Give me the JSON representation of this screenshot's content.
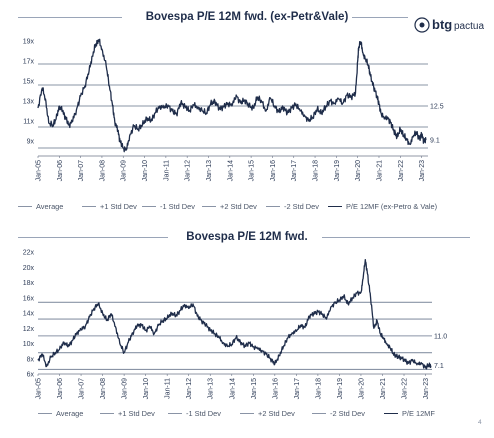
{
  "logo": {
    "brand": "btg",
    "sub": "pactual"
  },
  "page_number": "4",
  "chart_data": [
    {
      "type": "line",
      "title": "Bovespa P/E 12M fwd. (ex-Petr&Vale)",
      "xlabel": "",
      "ylabel": "",
      "ylim": [
        7.5,
        19.5
      ],
      "yticks": [
        9,
        11,
        13,
        15,
        17,
        19
      ],
      "ytick_labels": [
        "9x",
        "11x",
        "13x",
        "15x",
        "17x",
        "19x"
      ],
      "xlim": [
        2005.0,
        2023.3
      ],
      "xtick_labels": [
        "Jan-05",
        "Jan-06",
        "Jan-07",
        "Jan-08",
        "Jan-09",
        "Jan-10",
        "Jan-11",
        "Jan-12",
        "Jan-13",
        "Jan-14",
        "Jan-15",
        "Jan-16",
        "Jan-17",
        "Jan-18",
        "Jan-19",
        "Jan-20",
        "Jan-21",
        "Jan-22",
        "Jan-23"
      ],
      "grid": false,
      "legend_position": "bottom",
      "reference_lines": [
        {
          "name": "Average",
          "value": 12.5,
          "color": "#8a94a6"
        },
        {
          "name": "+1 Std Dev",
          "value": 14.6,
          "color": "#8a94a6"
        },
        {
          "name": "-1 Std Dev",
          "value": 10.4,
          "color": "#8a94a6"
        },
        {
          "name": "+2 Std Dev",
          "value": 16.7,
          "color": "#8a94a6"
        },
        {
          "name": "-2 Std Dev",
          "value": 8.3,
          "color": "#8a94a6"
        }
      ],
      "annotations": [
        {
          "text": "12.5",
          "x": 2023.3,
          "y": 12.5
        },
        {
          "text": "9.1",
          "x": 2023.3,
          "y": 9.1
        }
      ],
      "series": [
        {
          "name": "P/E 12MF (ex-Petro & Vale)",
          "color": "#1f2d4a",
          "x": [
            2005.0,
            2005.2,
            2005.35,
            2005.5,
            2005.7,
            2005.85,
            2006.0,
            2006.15,
            2006.3,
            2006.45,
            2006.6,
            2006.8,
            2007.0,
            2007.2,
            2007.4,
            2007.55,
            2007.7,
            2007.85,
            2008.0,
            2008.2,
            2008.35,
            2008.5,
            2008.6,
            2008.75,
            2008.85,
            2009.0,
            2009.15,
            2009.3,
            2009.5,
            2009.7,
            2009.9,
            2010.1,
            2010.3,
            2010.5,
            2010.7,
            2010.9,
            2011.1,
            2011.3,
            2011.5,
            2011.7,
            2011.9,
            2012.1,
            2012.3,
            2012.5,
            2012.7,
            2012.9,
            2013.1,
            2013.3,
            2013.5,
            2013.7,
            2013.9,
            2014.1,
            2014.3,
            2014.5,
            2014.7,
            2014.9,
            2015.1,
            2015.3,
            2015.5,
            2015.7,
            2015.9,
            2016.1,
            2016.3,
            2016.5,
            2016.7,
            2016.9,
            2017.1,
            2017.3,
            2017.5,
            2017.7,
            2017.9,
            2018.1,
            2018.3,
            2018.5,
            2018.7,
            2018.9,
            2019.1,
            2019.3,
            2019.5,
            2019.7,
            2019.9,
            2020.0,
            2020.05,
            2020.15,
            2020.25,
            2020.35,
            2020.5,
            2020.6,
            2020.75,
            2020.9,
            2021.0,
            2021.1,
            2021.25,
            2021.4,
            2021.55,
            2021.7,
            2021.85,
            2022.0,
            2022.15,
            2022.3,
            2022.45,
            2022.6,
            2022.75,
            2022.9,
            2023.0,
            2023.1,
            2023.2
          ],
          "y": [
            12.3,
            14.3,
            13.2,
            10.8,
            10.6,
            11.2,
            12.5,
            12.0,
            11.3,
            10.6,
            10.9,
            12.1,
            13.5,
            14.5,
            16.0,
            17.5,
            18.6,
            19.1,
            18.2,
            16.5,
            14.5,
            12.5,
            11.0,
            10.0,
            9.0,
            8.3,
            8.1,
            9.5,
            10.5,
            10.2,
            10.6,
            11.3,
            11.0,
            11.8,
            12.5,
            12.3,
            12.6,
            12.0,
            11.7,
            12.8,
            12.5,
            12.0,
            12.6,
            12.4,
            12.0,
            11.8,
            12.7,
            13.0,
            12.2,
            12.4,
            12.8,
            12.5,
            13.6,
            12.8,
            13.1,
            12.5,
            12.3,
            13.4,
            12.9,
            12.0,
            13.3,
            12.5,
            11.9,
            12.4,
            11.8,
            12.3,
            12.7,
            12.0,
            11.6,
            11.0,
            11.4,
            12.2,
            11.8,
            12.4,
            13.0,
            12.8,
            13.2,
            12.8,
            13.6,
            13.4,
            13.8,
            17.0,
            18.4,
            18.9,
            17.8,
            17.2,
            16.6,
            15.5,
            14.4,
            13.5,
            12.7,
            11.8,
            11.2,
            11.4,
            10.8,
            10.0,
            9.4,
            10.2,
            9.6,
            9.1,
            8.7,
            9.4,
            9.9,
            9.2,
            9.7,
            9.0,
            9.1
          ]
        }
      ]
    },
    {
      "type": "line",
      "title": "Bovespa P/E 12M fwd.",
      "xlabel": "",
      "ylabel": "",
      "ylim": [
        6,
        22
      ],
      "yticks": [
        6,
        8,
        10,
        12,
        14,
        16,
        18,
        20,
        22
      ],
      "ytick_labels": [
        "6x",
        "8x",
        "10x",
        "12x",
        "14x",
        "16x",
        "18x",
        "20x",
        "22x"
      ],
      "xlim": [
        2005.0,
        2023.3
      ],
      "xtick_labels": [
        "Jan-05",
        "Jan-06",
        "Jan-07",
        "Jan-08",
        "Jan-09",
        "Jan-10",
        "Jan-11",
        "Jan-12",
        "Jan-13",
        "Jan-14",
        "Jan-15",
        "Jan-16",
        "Jan-17",
        "Jan-18",
        "Jan-19",
        "Jan-20",
        "Jan-21",
        "Jan-22",
        "Jan-23"
      ],
      "grid": false,
      "legend_position": "bottom",
      "reference_lines": [
        {
          "name": "Average",
          "value": 11.0,
          "color": "#8a94a6"
        },
        {
          "name": "+1 Std Dev",
          "value": 13.2,
          "color": "#8a94a6"
        },
        {
          "name": "-1 Std Dev",
          "value": 8.8,
          "color": "#8a94a6"
        },
        {
          "name": "+2 Std Dev",
          "value": 15.4,
          "color": "#8a94a6"
        },
        {
          "name": "-2 Std Dev",
          "value": 6.6,
          "color": "#8a94a6"
        }
      ],
      "annotations": [
        {
          "text": "11.0",
          "x": 2023.3,
          "y": 11.0
        },
        {
          "text": "7.1",
          "x": 2023.3,
          "y": 7.1
        }
      ],
      "series": [
        {
          "name": "P/E 12MF",
          "color": "#1f2d4a",
          "x": [
            2005.0,
            2005.2,
            2005.4,
            2005.6,
            2005.8,
            2006.0,
            2006.2,
            2006.4,
            2006.6,
            2006.8,
            2007.0,
            2007.2,
            2007.4,
            2007.6,
            2007.8,
            2008.0,
            2008.2,
            2008.4,
            2008.6,
            2008.8,
            2009.0,
            2009.2,
            2009.4,
            2009.6,
            2009.8,
            2010.0,
            2010.2,
            2010.4,
            2010.6,
            2010.8,
            2011.0,
            2011.2,
            2011.4,
            2011.6,
            2011.8,
            2012.0,
            2012.2,
            2012.4,
            2012.6,
            2012.8,
            2013.0,
            2013.2,
            2013.4,
            2013.6,
            2013.8,
            2014.0,
            2014.2,
            2014.4,
            2014.6,
            2014.8,
            2015.0,
            2015.2,
            2015.4,
            2015.6,
            2015.8,
            2016.0,
            2016.2,
            2016.4,
            2016.6,
            2016.8,
            2017.0,
            2017.2,
            2017.4,
            2017.6,
            2017.8,
            2018.0,
            2018.2,
            2018.4,
            2018.6,
            2018.8,
            2019.0,
            2019.2,
            2019.4,
            2019.6,
            2019.8,
            2020.0,
            2020.1,
            2020.2,
            2020.3,
            2020.45,
            2020.6,
            2020.75,
            2020.9,
            2021.05,
            2021.2,
            2021.35,
            2021.5,
            2021.65,
            2021.8,
            2022.0,
            2022.2,
            2022.4,
            2022.6,
            2022.8,
            2023.0,
            2023.15,
            2023.25
          ],
          "y": [
            7.8,
            8.6,
            7.0,
            8.2,
            8.8,
            9.2,
            10.2,
            9.6,
            10.4,
            11.4,
            11.8,
            12.3,
            13.5,
            14.6,
            15.2,
            14.0,
            13.0,
            13.9,
            12.2,
            10.0,
            8.8,
            10.2,
            11.4,
            12.3,
            12.5,
            11.7,
            12.2,
            11.3,
            12.4,
            13.0,
            13.3,
            14.0,
            13.6,
            14.3,
            15.1,
            14.6,
            15.2,
            13.6,
            13.0,
            12.4,
            11.8,
            11.3,
            10.8,
            10.1,
            9.6,
            9.9,
            10.8,
            10.2,
            9.6,
            10.1,
            9.6,
            9.3,
            9.1,
            8.6,
            8.0,
            7.3,
            8.4,
            9.6,
            10.7,
            11.4,
            11.6,
            12.4,
            12.1,
            13.6,
            13.9,
            14.2,
            13.9,
            13.2,
            14.8,
            15.3,
            15.7,
            16.2,
            15.2,
            15.9,
            16.6,
            16.7,
            18.5,
            21.0,
            19.2,
            16.0,
            12.0,
            13.0,
            11.3,
            10.6,
            10.0,
            9.4,
            8.7,
            8.3,
            8.2,
            7.9,
            7.4,
            7.9,
            7.2,
            7.5,
            6.8,
            7.2,
            7.1
          ]
        }
      ]
    }
  ],
  "legend_labels": {
    "average": "Average",
    "plus1": "+1 Std Dev",
    "minus1": "-1 Std Dev",
    "plus2": "+2 Std Dev",
    "minus2": "-2 Std Dev",
    "series1": "P/E 12MF (ex-Petro & Vale)",
    "series2": "P/E 12MF"
  }
}
